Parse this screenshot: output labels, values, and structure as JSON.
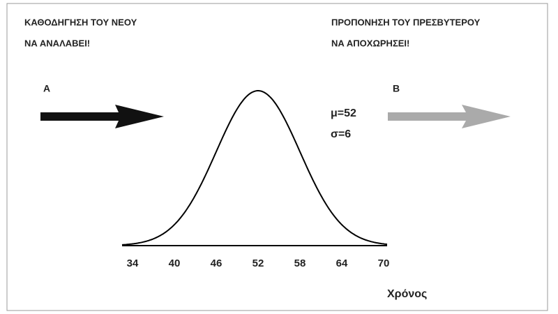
{
  "chart_data": {
    "type": "normal",
    "left_note": [
      "ΚΑΘΟΔΗΓΗΣΗ ΤΟΥ ΝΕΟΥ",
      "ΝΑ ΑΝΑΛΑΒΕΙ!"
    ],
    "right_note": [
      "ΠΡΟΠΟΝΗΣΗ ΤΟΥ ΠΡΕΣΒΥΤΕΡΟΥ",
      "ΝΑ ΑΠΟΧΩΡΗΣΕΙ!"
    ],
    "arrow_labels": [
      "A",
      "B"
    ],
    "mu": {
      "value": 52,
      "label": "μ=52"
    },
    "sigma": {
      "value": 6,
      "label": "σ=6"
    },
    "xlabel": "Χρόνος",
    "xlim": [
      32.5,
      70.5
    ],
    "xticks": [
      34,
      40,
      46,
      52,
      58,
      64,
      70
    ],
    "color": "#000000"
  }
}
